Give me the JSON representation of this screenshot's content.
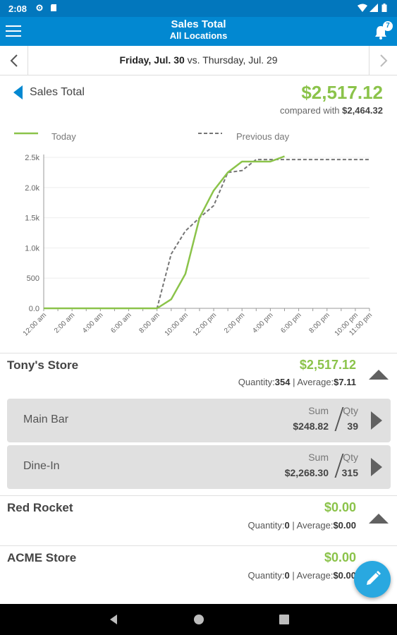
{
  "status_bar": {
    "time": "2:08"
  },
  "app_bar": {
    "title": "Sales Total",
    "subtitle": "All Locations",
    "notification_count": "7"
  },
  "date_nav": {
    "current_date": "Friday, Jul. 30",
    "vs_text": " vs. ",
    "compare_date": "Thursday, Jul. 29"
  },
  "summary": {
    "label": "Sales Total",
    "amount": "$2,517.12",
    "compare_prefix": "compared with ",
    "compare_amount": "$2,464.32"
  },
  "legend": {
    "today": "Today",
    "previous": "Previous day"
  },
  "colors": {
    "accent": "#0288d1",
    "green": "#8bc34a",
    "dashed": "#757575"
  },
  "chart_data": {
    "type": "line",
    "x": [
      "12:00 am",
      "1:00 am",
      "2:00 am",
      "3:00 am",
      "4:00 am",
      "5:00 am",
      "6:00 am",
      "7:00 am",
      "8:00 am",
      "9:00 am",
      "10:00 am",
      "11:00 am",
      "12:00 pm",
      "1:00 pm",
      "2:00 pm",
      "3:00 pm",
      "4:00 pm",
      "5:00 pm",
      "6:00 pm",
      "7:00 pm",
      "8:00 pm",
      "9:00 pm",
      "10:00 pm",
      "11:00 pm"
    ],
    "x_tick_labels": [
      "12:00 am",
      "2:00 am",
      "4:00 am",
      "6:00 am",
      "8:00 am",
      "10:00 am",
      "12:00 pm",
      "2:00 pm",
      "4:00 pm",
      "6:00 pm",
      "8:00 pm",
      "10:00 pm",
      "11:00 pm"
    ],
    "y_tick_labels": [
      "0.0",
      "500",
      "1.0k",
      "1.5k",
      "2.0k",
      "2.5k"
    ],
    "ylim": [
      0,
      2500
    ],
    "grid": true,
    "legend_position": "top",
    "series": [
      {
        "name": "Today",
        "values": [
          0,
          0,
          0,
          0,
          0,
          0,
          0,
          0,
          0,
          150,
          570,
          1500,
          1950,
          2250,
          2430,
          2430,
          2430,
          2517,
          null,
          null,
          null,
          null,
          null,
          null
        ]
      },
      {
        "name": "Previous day",
        "values": [
          0,
          0,
          0,
          0,
          0,
          0,
          0,
          0,
          0,
          900,
          1280,
          1500,
          1700,
          2250,
          2280,
          2464,
          2464,
          2464,
          2464,
          2464,
          2464,
          2464,
          2464,
          2464
        ]
      }
    ]
  },
  "stores": [
    {
      "name": "Tony's Store",
      "total": "$2,517.12",
      "qty_label": "Quantity:",
      "qty": "354",
      "avg_label": " | Average:",
      "avg": "$7.11"
    },
    {
      "name": "Red Rocket",
      "total": "$0.00",
      "qty_label": "Quantity:",
      "qty": "0",
      "avg_label": " | Average:",
      "avg": "$0.00"
    },
    {
      "name": "ACME Store",
      "total": "$0.00",
      "qty_label": "Quantity:",
      "qty": "0",
      "avg_label": " | Average:",
      "avg": "$0.00"
    }
  ],
  "sub_items": [
    {
      "name": "Main Bar",
      "sum_label": "Sum",
      "sum": "$248.82",
      "qty_label": "Qty",
      "qty": "39"
    },
    {
      "name": "Dine-In",
      "sum_label": "Sum",
      "sum": "$2,268.30",
      "qty_label": "Qty",
      "qty": "315"
    }
  ]
}
